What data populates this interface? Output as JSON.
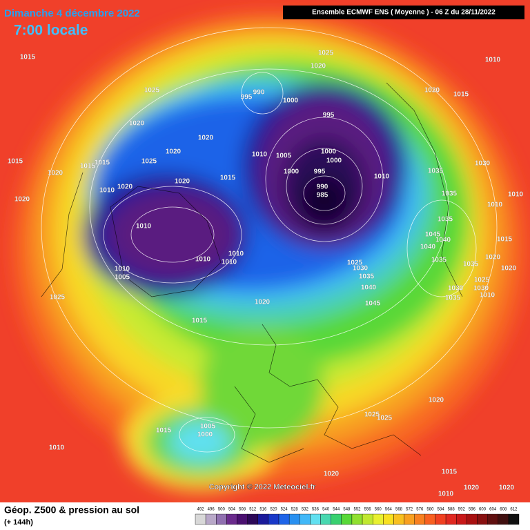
{
  "header": {
    "date": "Dimanche 4 décembre 2022",
    "time": "7:00 locale",
    "model": "Ensemble ECMWF ENS  ( Moyenne )  -  06 Z du 28/11/2022"
  },
  "map": {
    "pressure_labels": [
      1015,
      1025,
      1025,
      1020,
      1010,
      990,
      995,
      1000,
      1020,
      1015,
      1020,
      995,
      1015,
      1020,
      1015,
      1015,
      1025,
      1020,
      1020,
      1010,
      1005,
      1000,
      1000,
      1000,
      995,
      1010,
      1035,
      1030,
      1015,
      1020,
      1020,
      1010,
      1020,
      990,
      985,
      1035,
      1010,
      1010,
      1035,
      1010,
      1045,
      1040,
      1040,
      1015,
      1010,
      1010,
      1010,
      1025,
      1030,
      1035,
      1035,
      1035,
      1020,
      1020,
      1010,
      1005,
      1025,
      1040,
      1025,
      1030,
      1030,
      1010,
      1035,
      1020,
      1045,
      1015,
      1020,
      1025,
      1025,
      1015,
      1005,
      1000,
      1010,
      1020,
      1015,
      1020,
      1010,
      1020
    ],
    "copyright": "Copyright © 2022 Meteociel.fr"
  },
  "footer": {
    "title": "Géop. Z500 & pression au sol",
    "range": "(+ 144h)"
  },
  "legend": {
    "values": [
      492,
      496,
      500,
      504,
      508,
      512,
      516,
      520,
      524,
      528,
      532,
      536,
      540,
      544,
      548,
      552,
      556,
      560,
      564,
      568,
      572,
      576,
      580,
      584,
      588,
      592,
      596,
      600,
      604,
      608,
      612
    ],
    "colors": [
      "#d8d8d8",
      "#b8a8c8",
      "#9070b0",
      "#6a2a8c",
      "#4a1070",
      "#2c0858",
      "#1a1a9a",
      "#1838c8",
      "#1e64e8",
      "#2890f0",
      "#40b8f8",
      "#60e0f0",
      "#48d8b0",
      "#38d070",
      "#58d838",
      "#90e030",
      "#c0e830",
      "#e8f030",
      "#f8e020",
      "#f8c020",
      "#f8a020",
      "#f88020",
      "#f86020",
      "#f04020",
      "#e02820",
      "#c81818",
      "#a81010",
      "#881010",
      "#601010",
      "#401010",
      "#101010"
    ]
  }
}
